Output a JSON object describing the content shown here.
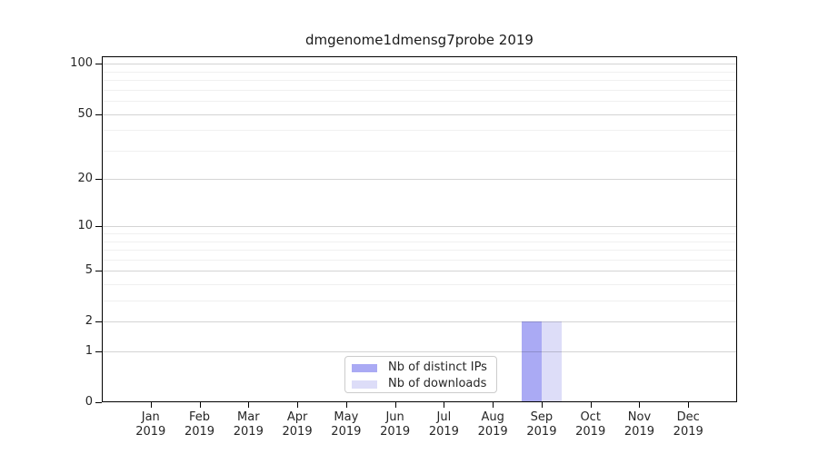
{
  "title": "dmgenome1dmensg7probe 2019",
  "chart_data": {
    "type": "bar",
    "title": "dmgenome1dmensg7probe 2019",
    "categories": [
      "Jan",
      "Feb",
      "Mar",
      "Apr",
      "May",
      "Jun",
      "Jul",
      "Aug",
      "Sep",
      "Oct",
      "Nov",
      "Dec"
    ],
    "year": "2019",
    "series": [
      {
        "name": "Nb of distinct IPs",
        "color": "#aaaaf4",
        "values": [
          0,
          0,
          0,
          0,
          0,
          0,
          0,
          0,
          2,
          0,
          0,
          0
        ]
      },
      {
        "name": "Nb of downloads",
        "color": "#ddddf8",
        "values": [
          0,
          0,
          0,
          0,
          0,
          0,
          0,
          0,
          2,
          0,
          0,
          0
        ]
      }
    ],
    "xlabel": "",
    "ylabel": "",
    "y_axis": {
      "scale": "log1p",
      "ticks": [
        0,
        1,
        2,
        5,
        10,
        20,
        50,
        100
      ],
      "minor_gridlines": [
        3,
        4,
        6,
        7,
        8,
        9,
        30,
        40,
        60,
        70,
        80,
        90
      ],
      "ylim": [
        0,
        111
      ]
    },
    "grid": true,
    "legend": {
      "position": "lower center",
      "entries": [
        "Nb of distinct IPs",
        "Nb of downloads"
      ]
    }
  }
}
